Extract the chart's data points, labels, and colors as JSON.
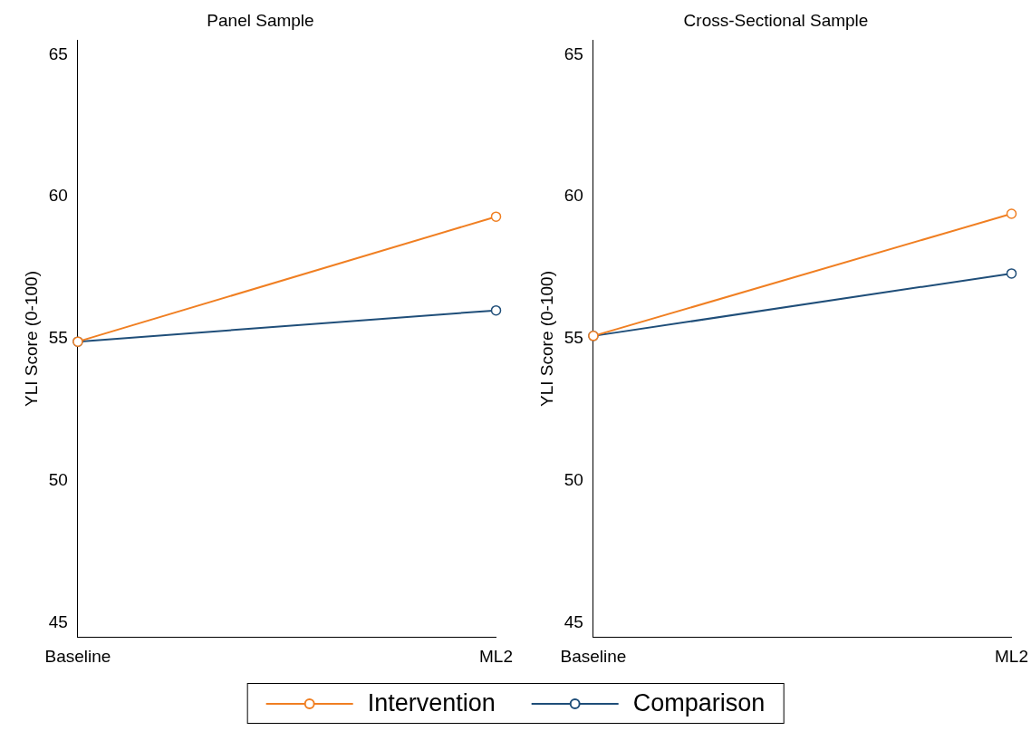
{
  "chart_data": [
    {
      "type": "line",
      "title": "Panel Sample",
      "ylabel": "YLI Score (0-100)",
      "categories": [
        "Baseline",
        "ML2"
      ],
      "ylim": [
        44.5,
        65.5
      ],
      "yticks": [
        45,
        50,
        55,
        60,
        65
      ],
      "marker": "circle",
      "legend": "bottom",
      "series": [
        {
          "name": "Intervention",
          "color": "#f07f22",
          "values": [
            54.9,
            59.3
          ]
        },
        {
          "name": "Comparison",
          "color": "#1f4e79",
          "values": [
            54.9,
            56.0
          ]
        }
      ]
    },
    {
      "type": "line",
      "title": "Cross-Sectional Sample",
      "ylabel": "YLI Score (0-100)",
      "categories": [
        "Baseline",
        "ML2"
      ],
      "ylim": [
        44.5,
        65.5
      ],
      "yticks": [
        45,
        50,
        55,
        60,
        65
      ],
      "marker": "circle",
      "series": [
        {
          "color": "#f07f22",
          "values": [
            55.1,
            59.4
          ]
        },
        {
          "color": "#1f4e79",
          "values": [
            55.1,
            57.3
          ]
        }
      ]
    }
  ]
}
